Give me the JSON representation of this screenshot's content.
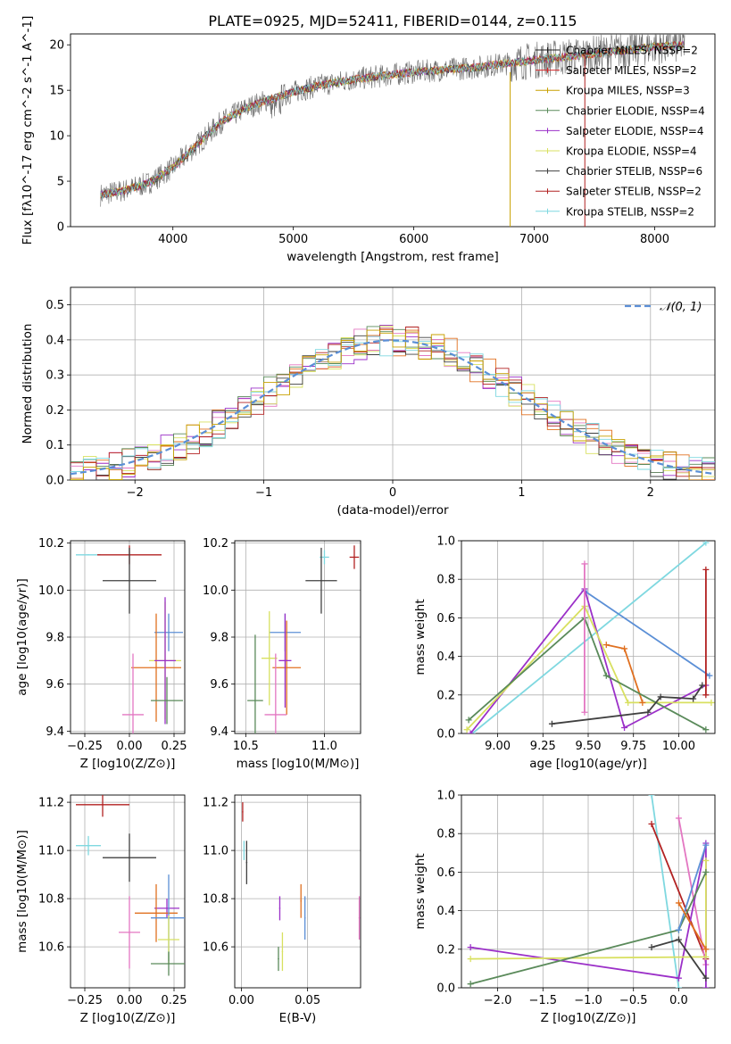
{
  "title": "PLATE=0925, MJD=52411, FIBERID=0144, z=0.115",
  "series_colors": [
    "#1f1f1f",
    "#c00000",
    "#c8a000",
    "#4c8c4c",
    "#8a2be2",
    "#d4e157",
    "#404040",
    "#b22222",
    "#4dd0e1"
  ],
  "chart_data": [
    {
      "id": "spectrum",
      "type": "line",
      "xlabel": "wavelength [Angstrom, rest frame]",
      "ylabel": "Flux [fλ10^-17 erg cm^-2 s^-1 A^-1]",
      "xlim": [
        3150,
        8500
      ],
      "ylim": [
        0,
        21.2
      ],
      "xticks": [
        4000,
        5000,
        6000,
        7000,
        8000
      ],
      "yticks": [
        0,
        5,
        10,
        15,
        20
      ],
      "legend_position": "upper right",
      "legend": [
        {
          "label": "Chabrier MILES, NSSP=2",
          "color": "#1f1f1f"
        },
        {
          "label": "Salpeter MILES, NSSP=2",
          "color": "#d62728"
        },
        {
          "label": "Kroupa MILES, NSSP=3",
          "color": "#c8a000"
        },
        {
          "label": "Chabrier ELODIE, NSSP=4",
          "color": "#5a8a5a"
        },
        {
          "label": "Salpeter ELODIE, NSSP=4",
          "color": "#9b30c8"
        },
        {
          "label": "Kroupa ELODIE, NSSP=4",
          "color": "#d8e060"
        },
        {
          "label": "Chabrier STELIB, NSSP=6",
          "color": "#404040"
        },
        {
          "label": "Salpeter STELIB, NSSP=2",
          "color": "#b22222"
        },
        {
          "label": "Kroupa STELIB, NSSP=2",
          "color": "#7fd8e0"
        }
      ],
      "continuum": {
        "x": [
          3400,
          3600,
          3800,
          4000,
          4200,
          4400,
          4600,
          4800,
          5000,
          5200,
          5500,
          6000,
          6500,
          7000,
          7500,
          8000,
          8250
        ],
        "y": [
          3.5,
          4.0,
          4.8,
          6.5,
          9.0,
          11.5,
          13.0,
          14.0,
          14.8,
          15.5,
          16.2,
          17.0,
          17.5,
          18.3,
          19.0,
          19.8,
          20.0
        ]
      }
    },
    {
      "id": "residuals",
      "type": "line",
      "xlabel": "(data-model)/error",
      "ylabel": "Normed distribution",
      "xlim": [
        -2.5,
        2.5
      ],
      "ylim": [
        0,
        0.55
      ],
      "xticks": [
        -2,
        -1,
        0,
        1,
        2
      ],
      "yticks": [
        0.0,
        0.1,
        0.2,
        0.3,
        0.4,
        0.5
      ],
      "legend": [
        {
          "label": "𝒩(0, 1)",
          "color": "#5b8fd6"
        }
      ],
      "legend_position": "upper right",
      "gaussian": {
        "mu": 0,
        "sigma": 1
      }
    },
    {
      "id": "age-vs-Z",
      "type": "scatter",
      "xlabel": "Z [log10(Z/Z⊙)]",
      "ylabel": "age [log10(age/yr)]",
      "xlim": [
        -0.33,
        0.31
      ],
      "ylim": [
        9.39,
        10.21
      ],
      "xticks": [
        -0.25,
        0.0,
        0.25
      ],
      "yticks": [
        9.4,
        9.6,
        9.8,
        10.0,
        10.2
      ],
      "points": [
        {
          "x": -0.23,
          "y": 10.15,
          "xerr": 0.07,
          "yerr": 0.0,
          "color": "#7fd8e0"
        },
        {
          "x": 0.0,
          "y": 10.15,
          "xerr": 0.18,
          "yerr": 0.04,
          "color": "#b22222"
        },
        {
          "x": 0.0,
          "y": 10.04,
          "xerr": 0.15,
          "yerr": 0.14,
          "color": "#404040"
        },
        {
          "x": 0.22,
          "y": 9.82,
          "xerr": 0.08,
          "yerr": 0.08,
          "color": "#5b8fd6"
        },
        {
          "x": 0.15,
          "y": 9.67,
          "xerr": 0.14,
          "yerr": 0.23,
          "color": "#e07020"
        },
        {
          "x": 0.2,
          "y": 9.7,
          "xerr": 0.09,
          "yerr": 0.25,
          "color": "#d8e060"
        },
        {
          "x": 0.2,
          "y": 9.7,
          "xerr": 0.06,
          "yerr": 0.27,
          "color": "#9b30c8"
        },
        {
          "x": 0.02,
          "y": 9.47,
          "xerr": 0.06,
          "yerr": 0.26,
          "color": "#e377c2"
        },
        {
          "x": 0.21,
          "y": 9.53,
          "xerr": 0.09,
          "yerr": 0.1,
          "color": "#5a8a5a"
        }
      ]
    },
    {
      "id": "age-vs-mass",
      "type": "scatter",
      "xlabel": "mass [log10(M/M⊙)]",
      "ylabel": "",
      "xlim": [
        10.43,
        11.23
      ],
      "ylim": [
        9.39,
        10.21
      ],
      "xticks": [
        10.5,
        11.0
      ],
      "yticks": [
        9.4,
        9.6,
        9.8,
        10.0,
        10.2
      ],
      "points": [
        {
          "x": 11.0,
          "y": 10.14,
          "xerr": 0.03,
          "yerr": 0.03,
          "color": "#7fd8e0"
        },
        {
          "x": 11.19,
          "y": 10.14,
          "xerr": 0.03,
          "yerr": 0.05,
          "color": "#b22222"
        },
        {
          "x": 10.98,
          "y": 10.04,
          "xerr": 0.1,
          "yerr": 0.14,
          "color": "#404040"
        },
        {
          "x": 10.75,
          "y": 9.82,
          "xerr": 0.1,
          "yerr": 0.08,
          "color": "#5b8fd6"
        },
        {
          "x": 10.76,
          "y": 9.67,
          "xerr": 0.09,
          "yerr": 0.2,
          "color": "#e07020"
        },
        {
          "x": 10.65,
          "y": 9.71,
          "xerr": 0.05,
          "yerr": 0.2,
          "color": "#d8e060"
        },
        {
          "x": 10.75,
          "y": 9.7,
          "xerr": 0.04,
          "yerr": 0.2,
          "color": "#9b30c8"
        },
        {
          "x": 10.69,
          "y": 9.47,
          "xerr": 0.07,
          "yerr": 0.26,
          "color": "#e377c2"
        },
        {
          "x": 10.56,
          "y": 9.53,
          "xerr": 0.05,
          "yerr": 0.28,
          "color": "#5a8a5a"
        }
      ]
    },
    {
      "id": "weight-vs-age",
      "type": "line",
      "xlabel": "age [log10(age/yr)]",
      "ylabel": "mass weight",
      "xlim": [
        8.8,
        10.2
      ],
      "ylim": [
        0,
        1
      ],
      "xticks": [
        9.0,
        9.25,
        9.5,
        9.75,
        10.0
      ],
      "yticks": [
        0.0,
        0.2,
        0.4,
        0.6,
        0.8,
        1.0
      ],
      "series": [
        {
          "color": "#7fd8e0",
          "x": [
            8.86,
            10.15
          ],
          "y": [
            0.0,
            0.99
          ]
        },
        {
          "color": "#5b8fd6",
          "x": [
            9.48,
            10.17
          ],
          "y": [
            0.74,
            0.3
          ]
        },
        {
          "color": "#9b30c8",
          "x": [
            8.85,
            9.48,
            9.7,
            10.15
          ],
          "y": [
            0.0,
            0.75,
            0.03,
            0.25
          ]
        },
        {
          "color": "#d8e060",
          "x": [
            8.83,
            9.48,
            9.72,
            10.18
          ],
          "y": [
            0.02,
            0.66,
            0.16,
            0.16
          ]
        },
        {
          "color": "#e07020",
          "x": [
            9.6,
            9.7,
            9.8
          ],
          "y": [
            0.46,
            0.44,
            0.16
          ]
        },
        {
          "color": "#5a8a5a",
          "x": [
            8.84,
            9.48,
            9.6,
            10.15
          ],
          "y": [
            0.07,
            0.6,
            0.3,
            0.02
          ]
        },
        {
          "color": "#404040",
          "x": [
            9.3,
            9.83,
            9.9,
            10.08,
            10.13
          ],
          "y": [
            0.05,
            0.11,
            0.19,
            0.18,
            0.25
          ]
        },
        {
          "color": "#b22222",
          "x": [
            10.15,
            10.15
          ],
          "y": [
            0.2,
            0.85
          ]
        },
        {
          "color": "#e377c2",
          "x": [
            9.48,
            9.48
          ],
          "y": [
            0.11,
            0.88
          ]
        }
      ]
    },
    {
      "id": "mass-vs-Z",
      "type": "scatter",
      "xlabel": "Z [log10(Z/Z⊙)]",
      "ylabel": "mass [log10(M/M⊙)]",
      "xlim": [
        -0.33,
        0.31
      ],
      "ylim": [
        10.43,
        11.23
      ],
      "xticks": [
        -0.25,
        0.0,
        0.25
      ],
      "yticks": [
        10.6,
        10.8,
        11.0,
        11.2
      ],
      "points": [
        {
          "x": -0.15,
          "y": 11.19,
          "xerr": 0.15,
          "yerr": 0.05,
          "color": "#b22222"
        },
        {
          "x": -0.23,
          "y": 11.02,
          "xerr": 0.07,
          "yerr": 0.04,
          "color": "#7fd8e0"
        },
        {
          "x": 0.0,
          "y": 10.97,
          "xerr": 0.15,
          "yerr": 0.1,
          "color": "#404040"
        },
        {
          "x": 0.21,
          "y": 10.76,
          "xerr": 0.07,
          "yerr": 0.04,
          "color": "#9b30c8"
        },
        {
          "x": 0.15,
          "y": 10.74,
          "xerr": 0.12,
          "yerr": 0.12,
          "color": "#e07020"
        },
        {
          "x": 0.22,
          "y": 10.72,
          "xerr": 0.1,
          "yerr": 0.18,
          "color": "#5b8fd6"
        },
        {
          "x": 0.0,
          "y": 10.66,
          "xerr": 0.06,
          "yerr": 0.15,
          "color": "#e377c2"
        },
        {
          "x": 0.22,
          "y": 10.63,
          "xerr": 0.06,
          "yerr": 0.1,
          "color": "#d8e060"
        },
        {
          "x": 0.22,
          "y": 10.53,
          "xerr": 0.1,
          "yerr": 0.05,
          "color": "#5a8a5a"
        }
      ]
    },
    {
      "id": "mass-vs-ebv",
      "type": "scatter",
      "xlabel": "E(B-V)",
      "ylabel": "",
      "xlim": [
        -0.005,
        0.09
      ],
      "ylim": [
        10.43,
        11.23
      ],
      "xticks": [
        0.0,
        0.05
      ],
      "yticks": [
        10.6,
        10.8,
        11.0,
        11.2
      ],
      "points": [
        {
          "x": 0.001,
          "y": 11.16,
          "xerr": 0,
          "yerr": 0.04,
          "color": "#b22222"
        },
        {
          "x": 0.002,
          "y": 11.0,
          "xerr": 0,
          "yerr": 0.04,
          "color": "#7fd8e0"
        },
        {
          "x": 0.004,
          "y": 10.95,
          "xerr": 0,
          "yerr": 0.09,
          "color": "#404040"
        },
        {
          "x": 0.029,
          "y": 10.76,
          "xerr": 0,
          "yerr": 0.05,
          "color": "#9b30c8"
        },
        {
          "x": 0.045,
          "y": 10.79,
          "xerr": 0,
          "yerr": 0.07,
          "color": "#e07020"
        },
        {
          "x": 0.048,
          "y": 10.72,
          "xerr": 0,
          "yerr": 0.09,
          "color": "#5b8fd6"
        },
        {
          "x": 0.089,
          "y": 10.72,
          "xerr": 0,
          "yerr": 0.09,
          "color": "#e377c2"
        },
        {
          "x": 0.031,
          "y": 10.58,
          "xerr": 0,
          "yerr": 0.08,
          "color": "#d8e060"
        },
        {
          "x": 0.028,
          "y": 10.55,
          "xerr": 0,
          "yerr": 0.05,
          "color": "#5a8a5a"
        }
      ]
    },
    {
      "id": "weight-vs-Z",
      "type": "line",
      "xlabel": "Z [log10(Z/Z⊙)]",
      "ylabel": "mass weight",
      "xlim": [
        -2.4,
        0.4
      ],
      "ylim": [
        0,
        1
      ],
      "xticks": [
        -2.0,
        -1.5,
        -1.0,
        -0.5,
        0.0
      ],
      "yticks": [
        0.0,
        0.2,
        0.4,
        0.6,
        0.8,
        1.0
      ],
      "series": [
        {
          "color": "#7fd8e0",
          "x": [
            -0.3,
            0.0
          ],
          "y": [
            1.0,
            0.0
          ]
        },
        {
          "color": "#b22222",
          "x": [
            -0.3,
            0.3
          ],
          "y": [
            0.85,
            0.15
          ]
        },
        {
          "color": "#e377c2",
          "x": [
            0.0,
            0.3
          ],
          "y": [
            0.88,
            0.12
          ]
        },
        {
          "color": "#9b30c8",
          "x": [
            -2.3,
            0.0,
            0.3,
            0.3
          ],
          "y": [
            0.21,
            0.05,
            0.75,
            0.0
          ]
        },
        {
          "color": "#d8e060",
          "x": [
            -2.3,
            0.3,
            0.3
          ],
          "y": [
            0.15,
            0.16,
            0.66
          ]
        },
        {
          "color": "#5a8a5a",
          "x": [
            -2.3,
            0.0,
            0.3
          ],
          "y": [
            0.02,
            0.3,
            0.6
          ]
        },
        {
          "color": "#404040",
          "x": [
            -0.3,
            0.0,
            0.3
          ],
          "y": [
            0.21,
            0.25,
            0.05
          ]
        },
        {
          "color": "#5b8fd6",
          "x": [
            0.0,
            0.3
          ],
          "y": [
            0.3,
            0.74
          ]
        },
        {
          "color": "#e07020",
          "x": [
            0.0,
            0.3
          ],
          "y": [
            0.44,
            0.2
          ]
        }
      ]
    }
  ]
}
